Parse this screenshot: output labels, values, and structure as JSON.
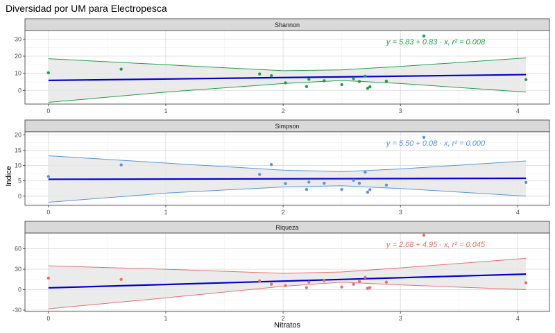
{
  "chart_data": {
    "type": "scatter",
    "title": "Diversidad por UM para Electropesca",
    "xlabel": "Nitratos",
    "ylabel": "Indice",
    "xlim": [
      -0.2,
      4.27
    ],
    "x_ticks": [
      "0",
      "1",
      "2",
      "3",
      "4"
    ],
    "grid": true,
    "panels": [
      {
        "name": "Shannon",
        "color": "#1f9e49",
        "ylim": [
          -8,
          35
        ],
        "y_ticks": [
          "0",
          "10",
          "20",
          "30"
        ],
        "equation": "y = 5.83 + 0.83 · x,  r² = 0.008",
        "fit": {
          "intercept": 5.83,
          "slope": 0.83
        },
        "band": {
          "x": [
            0,
            1,
            2,
            2.5,
            3,
            4.07
          ],
          "lower": [
            -7,
            -1,
            4,
            5.8,
            4,
            -1
          ],
          "upper": [
            18.5,
            15,
            11.5,
            12,
            14,
            19
          ]
        },
        "points": {
          "x": [
            0,
            0.62,
            1.8,
            1.9,
            2.02,
            2.2,
            2.22,
            2.35,
            2.5,
            2.6,
            2.65,
            2.7,
            2.72,
            2.74,
            2.88,
            3.2,
            4.07
          ],
          "y": [
            10.3,
            12.4,
            9.6,
            8.6,
            4.4,
            2.2,
            6.5,
            5.6,
            3.4,
            6.9,
            5.2,
            8.3,
            1.2,
            2.1,
            5.4,
            31.8,
            6.3
          ]
        }
      },
      {
        "name": "Simpson",
        "color": "#5b95d6",
        "ylim": [
          -3,
          21
        ],
        "y_ticks": [
          "0",
          "5",
          "10",
          "15",
          "20"
        ],
        "equation": "y = 5.50 + 0.08 · x,  r² = 0.000",
        "fit": {
          "intercept": 5.5,
          "slope": 0.08
        },
        "band": {
          "x": [
            0,
            1,
            2,
            2.5,
            3,
            4.07
          ],
          "lower": [
            -2,
            1,
            3,
            3.4,
            2.5,
            0
          ],
          "upper": [
            13.2,
            10.8,
            8.5,
            8,
            8.9,
            11.5
          ]
        },
        "points": {
          "x": [
            0,
            0.62,
            1.8,
            1.9,
            2.02,
            2.2,
            2.22,
            2.35,
            2.5,
            2.6,
            2.65,
            2.7,
            2.72,
            2.74,
            2.88,
            3.2,
            4.07
          ],
          "y": [
            6.4,
            10.2,
            7.1,
            10.3,
            4.1,
            2.2,
            4.6,
            4.2,
            2.2,
            5.2,
            4.2,
            7.8,
            1.3,
            2.1,
            3.6,
            19.2,
            4.5
          ]
        }
      },
      {
        "name": "Riqueza",
        "color": "#e4716d",
        "ylim": [
          -32,
          83
        ],
        "y_ticks": [
          "-30",
          "0",
          "30",
          "60"
        ],
        "equation": "y = 2.68 + 4.95 · x,  r² = 0.045",
        "fit": {
          "intercept": 2.68,
          "slope": 4.95
        },
        "band": {
          "x": [
            0,
            1,
            2,
            2.5,
            3,
            4.07
          ],
          "lower": [
            -28,
            -12,
            5,
            11,
            7,
            0
          ],
          "upper": [
            35,
            30,
            24,
            26,
            32,
            46
          ]
        },
        "points": {
          "x": [
            0,
            0.62,
            1.8,
            1.9,
            2.02,
            2.2,
            2.22,
            2.35,
            2.5,
            2.6,
            2.65,
            2.7,
            2.72,
            2.74,
            2.88,
            3.2,
            4.07
          ],
          "y": [
            17,
            15,
            13,
            8,
            6,
            3,
            11,
            13,
            4,
            8,
            12,
            18,
            2,
            3,
            11,
            80,
            10
          ]
        }
      }
    ],
    "fit_line_color": "#0000cc",
    "band_fill": "#e8e8e8",
    "strip_fill": "#d9d9d9"
  }
}
